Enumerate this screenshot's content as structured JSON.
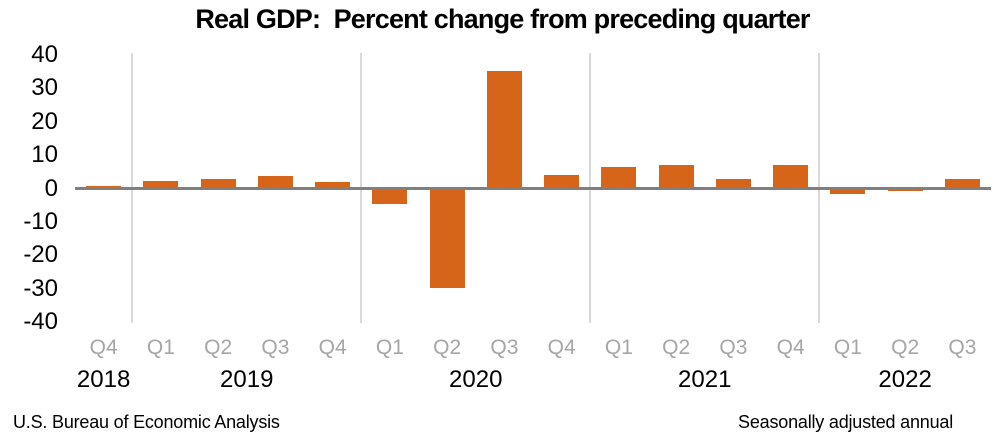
{
  "chart_data": {
    "type": "bar",
    "title": "Real GDP:  Percent change from preceding quarter",
    "categories": [
      "2018 Q4",
      "2019 Q1",
      "2019 Q2",
      "2019 Q3",
      "2019 Q4",
      "2020 Q1",
      "2020 Q2",
      "2020 Q3",
      "2020 Q4",
      "2021 Q1",
      "2021 Q2",
      "2021 Q3",
      "2021 Q4",
      "2022 Q1",
      "2022 Q2",
      "2022 Q3"
    ],
    "quarter_labels": [
      "Q4",
      "Q1",
      "Q2",
      "Q3",
      "Q4",
      "Q1",
      "Q2",
      "Q3",
      "Q4",
      "Q1",
      "Q2",
      "Q3",
      "Q4",
      "Q1",
      "Q2",
      "Q3"
    ],
    "values": [
      0.7,
      2.2,
      2.7,
      3.6,
      1.8,
      -4.6,
      -29.9,
      35.3,
      3.9,
      6.3,
      7.0,
      2.7,
      7.0,
      -1.6,
      -0.6,
      2.9
    ],
    "year_groups": [
      {
        "year": "2018",
        "quarters": 1
      },
      {
        "year": "2019",
        "quarters": 4
      },
      {
        "year": "2020",
        "quarters": 4
      },
      {
        "year": "2021",
        "quarters": 4
      },
      {
        "year": "2022",
        "quarters": 3
      }
    ],
    "yticks": [
      40,
      30,
      20,
      10,
      0,
      -10,
      -20,
      -30,
      -40
    ],
    "ylim": [
      -40,
      40
    ],
    "xlabel": "",
    "ylabel": "",
    "legend": "none",
    "grid": "vertical year separators only"
  },
  "footer": {
    "left": "U.S. Bureau of Economic Analysis",
    "right": "Seasonally adjusted annual"
  },
  "colors": {
    "bar": "#d6651a",
    "zero_line": "#7f7f7f",
    "year_separator": "#d9d9d9",
    "quarter_label": "#a6a6a6",
    "year_label": "#000000",
    "axis_label": "#000000",
    "title": "#000000",
    "background": "#ffffff"
  }
}
